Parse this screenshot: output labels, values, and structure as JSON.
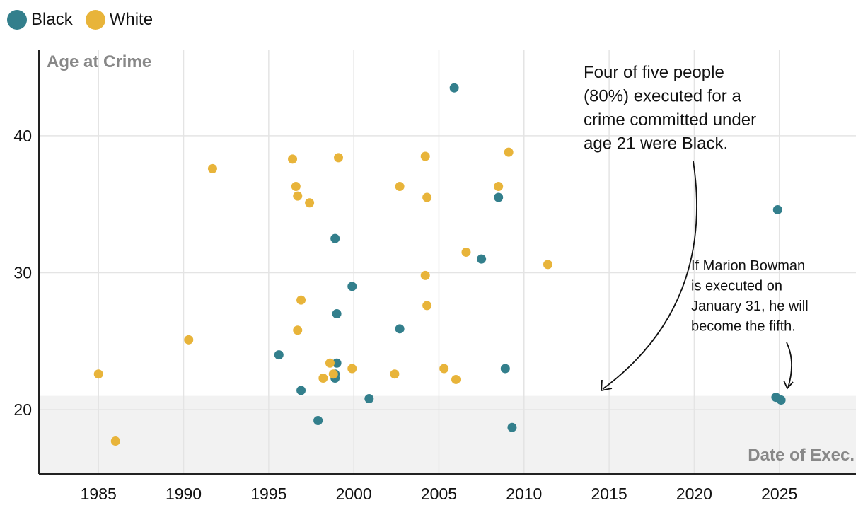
{
  "legend": {
    "black_label": "Black",
    "white_label": "White",
    "black_color": "#337f8c",
    "white_color": "#e8b43a"
  },
  "chart_data": {
    "type": "scatter",
    "xlabel": "Date of Exec.",
    "ylabel": "Age at Crime",
    "xlim": [
      1981.5,
      2029.5
    ],
    "ylim": [
      15.3,
      46.3
    ],
    "x_ticks": [
      1985,
      1990,
      1995,
      2000,
      2005,
      2010,
      2015,
      2020,
      2025
    ],
    "y_ticks": [
      20,
      30,
      40
    ],
    "shaded_below_age": 21,
    "grid": true,
    "series": [
      {
        "name": "Black",
        "color": "#337f8c",
        "points": [
          {
            "x": 1995.6,
            "y": 24.0
          },
          {
            "x": 1996.9,
            "y": 21.4
          },
          {
            "x": 1997.9,
            "y": 19.2
          },
          {
            "x": 1998.9,
            "y": 32.5
          },
          {
            "x": 1999.0,
            "y": 27.0
          },
          {
            "x": 1999.0,
            "y": 23.4
          },
          {
            "x": 1998.9,
            "y": 22.6
          },
          {
            "x": 1998.9,
            "y": 22.3
          },
          {
            "x": 1999.9,
            "y": 29.0
          },
          {
            "x": 2000.9,
            "y": 20.8
          },
          {
            "x": 2002.7,
            "y": 25.9
          },
          {
            "x": 2005.9,
            "y": 43.5
          },
          {
            "x": 2007.5,
            "y": 31.0
          },
          {
            "x": 2008.5,
            "y": 35.5
          },
          {
            "x": 2008.9,
            "y": 23.0
          },
          {
            "x": 2009.3,
            "y": 18.7
          },
          {
            "x": 2024.9,
            "y": 34.6
          },
          {
            "x": 2024.8,
            "y": 20.9
          },
          {
            "x": 2025.1,
            "y": 20.7
          }
        ]
      },
      {
        "name": "White",
        "color": "#e8b43a",
        "points": [
          {
            "x": 1985.0,
            "y": 22.6
          },
          {
            "x": 1986.0,
            "y": 17.7
          },
          {
            "x": 1990.3,
            "y": 25.1
          },
          {
            "x": 1991.7,
            "y": 37.6
          },
          {
            "x": 1996.4,
            "y": 38.3
          },
          {
            "x": 1996.6,
            "y": 36.3
          },
          {
            "x": 1996.7,
            "y": 35.6
          },
          {
            "x": 1997.4,
            "y": 35.1
          },
          {
            "x": 1996.9,
            "y": 28.0
          },
          {
            "x": 1996.7,
            "y": 25.8
          },
          {
            "x": 1998.2,
            "y": 22.3
          },
          {
            "x": 1998.6,
            "y": 23.4
          },
          {
            "x": 1998.8,
            "y": 22.6
          },
          {
            "x": 1999.1,
            "y": 38.4
          },
          {
            "x": 1999.9,
            "y": 23.0
          },
          {
            "x": 2002.4,
            "y": 22.6
          },
          {
            "x": 2002.7,
            "y": 36.3
          },
          {
            "x": 2004.2,
            "y": 38.5
          },
          {
            "x": 2004.3,
            "y": 35.5
          },
          {
            "x": 2004.2,
            "y": 29.8
          },
          {
            "x": 2004.3,
            "y": 27.6
          },
          {
            "x": 2005.3,
            "y": 23.0
          },
          {
            "x": 2006.0,
            "y": 22.2
          },
          {
            "x": 2006.6,
            "y": 31.5
          },
          {
            "x": 2008.5,
            "y": 36.3
          },
          {
            "x": 2009.1,
            "y": 38.8
          },
          {
            "x": 2011.4,
            "y": 30.6
          }
        ]
      }
    ],
    "annotations": [
      {
        "lines": [
          "Four of five people",
          "(80%) executed for a",
          "crime committed under",
          "age 21 were Black."
        ]
      },
      {
        "lines": [
          "If Marion Bowman",
          "is executed on",
          "January 31, he will",
          "become the fifth."
        ]
      }
    ]
  }
}
